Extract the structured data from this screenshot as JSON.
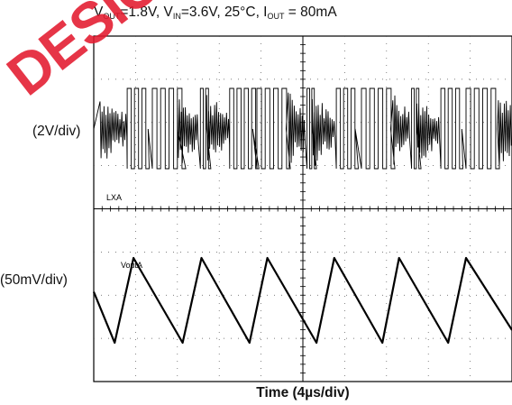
{
  "title": {
    "vout_main": "V",
    "vout_sub": "OUT",
    "vout_rest": "=1.8V, V",
    "vin_sub": "IN",
    "vin_rest": "=3.6V, 25°C, I",
    "iout_sub": "OUT",
    "iout_rest": " = 80mA"
  },
  "watermark": "DESIG",
  "chart_data": {
    "type": "line",
    "title": "VOUT=1.8V, VIN=3.6V, 25°C, IOUT = 80mA",
    "xlabel": "Time (4µs/div)",
    "grid": true,
    "divisions": {
      "x": 10,
      "y": 8
    },
    "channels": [
      {
        "name": "LXA",
        "scale_label": "(2V/div)",
        "high_level_V": 3.6,
        "low_level_V": 0,
        "description_points": "switching node: bursts of switching pulses separated by ringing/idle intervals",
        "burst_start_times_us": [
          0.4,
          10.2,
          20.4,
          30.4
        ],
        "idle_ringing_starts_us": [
          0.5,
          8.0,
          10.6,
          18.6,
          20.6,
          28.6,
          30.6
        ]
      },
      {
        "name": "VoutA",
        "scale_label": "(50mV/div)",
        "coupling": "AC",
        "peak_to_peak_mV": 95,
        "approx_period_us": 6.5,
        "peak_times_us": [
          3.8,
          10.3,
          16.6,
          23.0,
          29.2,
          35.6
        ],
        "valley_times_us": [
          2.0,
          8.5,
          14.9,
          21.3,
          27.6,
          33.9
        ]
      }
    ]
  },
  "labels": {
    "ylab_top": "(2V/div)",
    "ylab_bot": "(50mV/div)",
    "ch1_name": "LXA",
    "ch2_name": "VoutA",
    "xlabel": "Time (4µs/div)"
  }
}
